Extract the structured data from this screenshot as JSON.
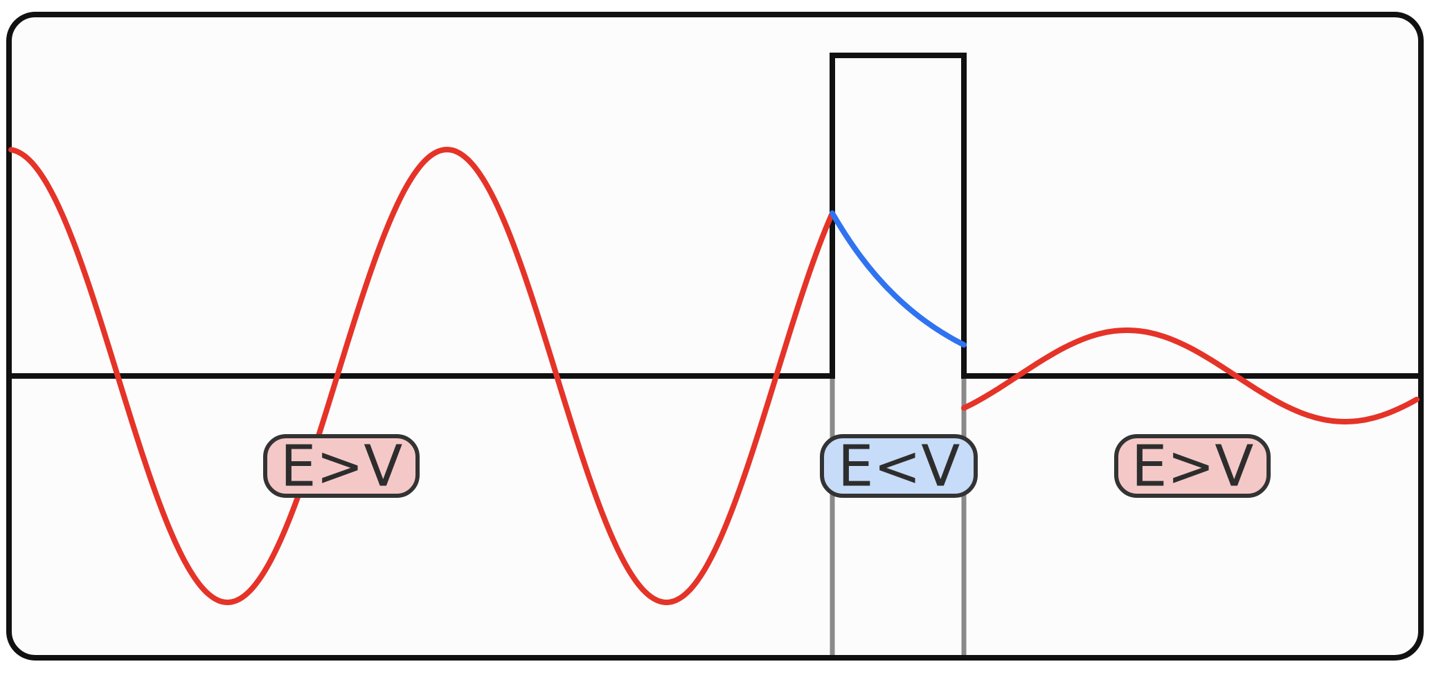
{
  "labels": {
    "left_region": "E>V",
    "barrier_region": "E<V",
    "right_region": "E>V"
  },
  "colors": {
    "frame_stroke": "#111111",
    "frame_fill": "#fcfcfc",
    "potential_stroke": "#111111",
    "barrier_guide": "#8a8a8a",
    "wave_outside": "#e53328",
    "wave_inside": "#2f73f0",
    "badge_outside_fill": "#f5c8c8",
    "badge_inside_fill": "#c6dcf8",
    "badge_stroke": "#333333"
  }
}
